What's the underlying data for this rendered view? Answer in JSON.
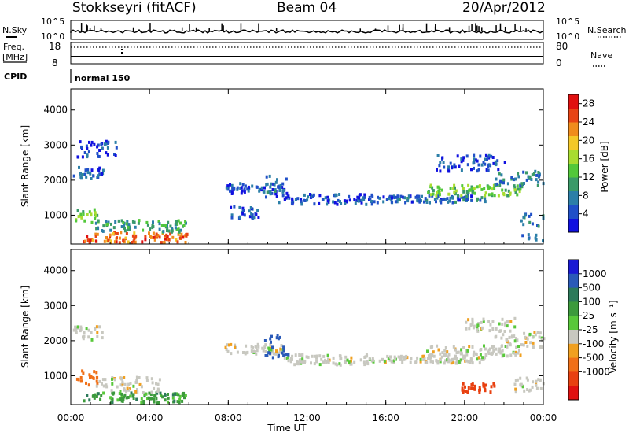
{
  "header": {
    "site_label": "Stokkseyri (fitACF)",
    "beam_label": "Beam 04",
    "date_label": "20/Apr/2012"
  },
  "strip_labels": {
    "nsky": "N.Sky",
    "nsearch": "N.Search",
    "freq_line1": "Freq.",
    "freq_line2": "[MHz]",
    "nave": "Nave",
    "cpid": "CPID",
    "nsky_tick_hi": "10^5",
    "nsky_tick_lo": "10^0",
    "nsearch_tick_hi": "10^5",
    "nsearch_tick_lo": "10^0",
    "freq_tick_hi": "18",
    "freq_tick_lo": "8",
    "nave_tick_hi": "80",
    "nave_tick_lo": "0",
    "cpid_text": "normal 150"
  },
  "chart_data": [
    {
      "type": "heatmap",
      "parameter": "Power",
      "ylabel": "Slant Range [km]",
      "ylim": [
        180,
        4600
      ],
      "y_ticks": [
        "1000",
        "2000",
        "3000",
        "4000"
      ],
      "y_tick_values": [
        1000,
        2000,
        3000,
        4000
      ],
      "colorbar_label": "Power [dB]",
      "colorbar_ticks": [
        "4",
        "8",
        "12",
        "16",
        "20",
        "24",
        "28"
      ],
      "colorbar_tick_values": [
        4,
        8,
        12,
        16,
        20,
        24,
        28
      ],
      "colorbar_range": [
        0,
        30
      ],
      "colorscale": [
        "#1010e0",
        "#2050c8",
        "#2c7fa8",
        "#3a9a68",
        "#52c83a",
        "#a8dc30",
        "#f4c828",
        "#f08c1c",
        "#e84414",
        "#e01010"
      ],
      "regions": [
        {
          "t": [
            0.1,
            1.6
          ],
          "r": [
            2050,
            2450
          ],
          "v": 6
        },
        {
          "t": [
            0.2,
            1.4
          ],
          "r": [
            780,
            1200
          ],
          "v": 14
        },
        {
          "t": [
            0.6,
            5.9
          ],
          "r": [
            260,
            560
          ],
          "v": 24
        },
        {
          "t": [
            1.2,
            5.8
          ],
          "r": [
            560,
            900
          ],
          "v": 10
        },
        {
          "t": [
            0.3,
            2.4
          ],
          "r": [
            2700,
            3200
          ],
          "v": 4
        },
        {
          "t": [
            7.8,
            10.8
          ],
          "r": [
            1650,
            1950
          ],
          "v": 5
        },
        {
          "t": [
            9.8,
            11.0
          ],
          "r": [
            1400,
            2200
          ],
          "v": 6
        },
        {
          "t": [
            10.8,
            15.5
          ],
          "r": [
            1350,
            1650
          ],
          "v": 5
        },
        {
          "t": [
            15.5,
            21.0
          ],
          "r": [
            1400,
            1600
          ],
          "v": 6
        },
        {
          "t": [
            18.0,
            22.8
          ],
          "r": [
            1600,
            1900
          ],
          "v": 14
        },
        {
          "t": [
            21.5,
            24.0
          ],
          "r": [
            1850,
            2300
          ],
          "v": 8
        },
        {
          "t": [
            18.5,
            22.0
          ],
          "r": [
            2300,
            2750
          ],
          "v": 4
        },
        {
          "t": [
            22.8,
            24.0
          ],
          "r": [
            300,
            1100
          ],
          "v": 6
        },
        {
          "t": [
            8.0,
            9.5
          ],
          "r": [
            950,
            1300
          ],
          "v": 5
        }
      ],
      "x_ticks": [
        "00:00",
        "04:00",
        "08:00",
        "12:00",
        "16:00",
        "20:00",
        "00:00"
      ]
    },
    {
      "type": "heatmap",
      "parameter": "Velocity",
      "ylabel": "Slant Range [km]",
      "ylim": [
        180,
        4600
      ],
      "y_ticks": [
        "1000",
        "2000",
        "3000",
        "4000"
      ],
      "y_tick_values": [
        1000,
        2000,
        3000,
        4000
      ],
      "xlabel": "Time UT",
      "x_ticks": [
        "00:00",
        "04:00",
        "08:00",
        "12:00",
        "16:00",
        "20:00",
        "00:00"
      ],
      "x_tick_values": [
        0,
        4,
        8,
        12,
        16,
        20,
        24
      ],
      "xlim": [
        0,
        24
      ],
      "colorbar_label": "Velocity [m s⁻¹]",
      "colorbar_ticks": [
        "1000",
        "500",
        "100",
        "25",
        "-25",
        "-100",
        "-500",
        "-1000"
      ],
      "colorscale_top_to_bottom": [
        "#1a1ad4",
        "#2a5ab8",
        "#2c7a5a",
        "#3c9a3c",
        "#58c83a",
        "#c8c8c0",
        "#f0a020",
        "#f07018",
        "#e84010",
        "#e01010"
      ],
      "regions": [
        {
          "t": [
            0.1,
            1.6
          ],
          "r": [
            2050,
            2450
          ],
          "v": 0
        },
        {
          "t": [
            0.2,
            1.3
          ],
          "r": [
            780,
            1200
          ],
          "v": -200
        },
        {
          "t": [
            0.6,
            5.9
          ],
          "r": [
            260,
            560
          ],
          "v": 80
        },
        {
          "t": [
            1.2,
            4.5
          ],
          "r": [
            560,
            1000
          ],
          "v": 0
        },
        {
          "t": [
            7.8,
            10.8
          ],
          "r": [
            1650,
            1950
          ],
          "v": 0
        },
        {
          "t": [
            9.8,
            11.0
          ],
          "r": [
            1500,
            2200
          ],
          "v": 700
        },
        {
          "t": [
            10.8,
            15.5
          ],
          "r": [
            1350,
            1650
          ],
          "v": 0
        },
        {
          "t": [
            15.5,
            21.0
          ],
          "r": [
            1400,
            1600
          ],
          "v": 0
        },
        {
          "t": [
            18.0,
            22.8
          ],
          "r": [
            1600,
            1900
          ],
          "v": 0
        },
        {
          "t": [
            21.5,
            24.0
          ],
          "r": [
            1850,
            2300
          ],
          "v": 0
        },
        {
          "t": [
            20.0,
            22.5
          ],
          "r": [
            2300,
            2700
          ],
          "v": 0
        },
        {
          "t": [
            19.8,
            21.5
          ],
          "r": [
            560,
            820
          ],
          "v": -400
        },
        {
          "t": [
            22.5,
            24.0
          ],
          "r": [
            600,
            1000
          ],
          "v": 0
        }
      ]
    }
  ]
}
